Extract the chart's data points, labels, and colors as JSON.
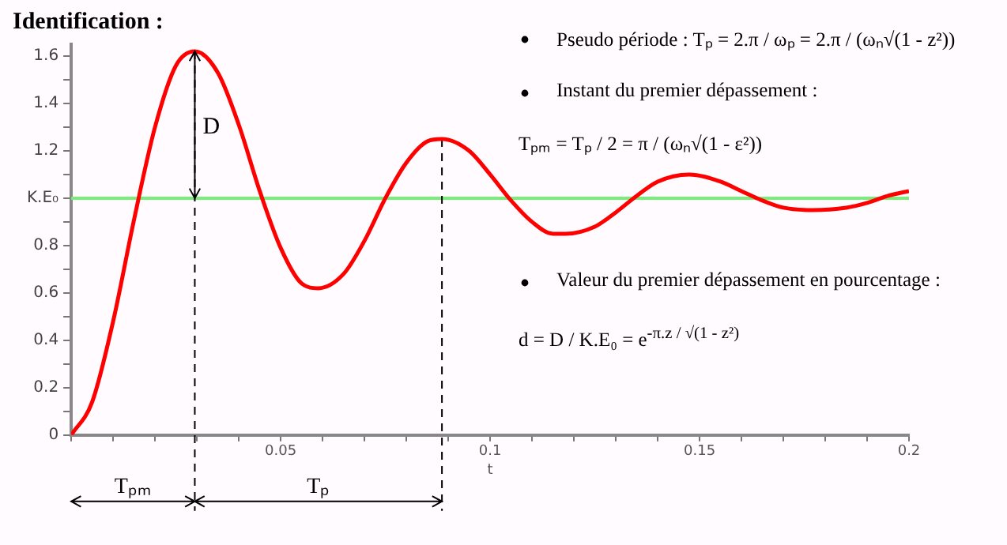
{
  "chart_data": {
    "type": "line",
    "title": "Identification :",
    "xlabel": "t",
    "x": [
      0,
      0.005,
      0.01,
      0.015,
      0.02,
      0.025,
      0.0295,
      0.035,
      0.04,
      0.045,
      0.05,
      0.055,
      0.059,
      0.065,
      0.07,
      0.075,
      0.08,
      0.085,
      0.0885,
      0.095,
      0.1,
      0.105,
      0.11,
      0.115,
      0.118,
      0.125,
      0.13,
      0.135,
      0.14,
      0.1475,
      0.155,
      0.16,
      0.165,
      0.17,
      0.177,
      0.185,
      0.19,
      0.195,
      0.2
    ],
    "series": [
      {
        "color": "#ff0000",
        "values": [
          0,
          0.14,
          0.48,
          0.91,
          1.3,
          1.56,
          1.62,
          1.53,
          1.31,
          1.03,
          0.79,
          0.64,
          0.62,
          0.68,
          0.82,
          1.0,
          1.15,
          1.24,
          1.25,
          1.2,
          1.1,
          0.99,
          0.9,
          0.85,
          0.85,
          0.88,
          0.94,
          1.01,
          1.07,
          1.1,
          1.07,
          1.03,
          0.99,
          0.96,
          0.95,
          0.96,
          0.98,
          1.01,
          1.03
        ]
      }
    ],
    "xlim": [
      0,
      0.2
    ],
    "xticks": [
      {
        "value": 0,
        "label": null
      },
      {
        "value": 0.01,
        "label": null
      },
      {
        "value": 0.02,
        "label": null
      },
      {
        "value": 0.03,
        "label": null
      },
      {
        "value": 0.04,
        "label": null
      },
      0.05,
      {
        "value": 0.06,
        "label": null
      },
      {
        "value": 0.07,
        "label": null
      },
      {
        "value": 0.08,
        "label": null
      },
      {
        "value": 0.09,
        "label": null
      },
      0.1,
      {
        "value": 0.11,
        "label": null
      },
      {
        "value": 0.12,
        "label": null
      },
      {
        "value": 0.13,
        "label": null
      },
      {
        "value": 0.14,
        "label": null
      },
      0.15,
      {
        "value": 0.16,
        "label": null
      },
      {
        "value": 0.17,
        "label": null
      },
      {
        "value": 0.18,
        "label": null
      },
      {
        "value": 0.19,
        "label": null
      },
      0.2
    ],
    "ylim": [
      0,
      1.65
    ],
    "yticks": [
      0,
      {
        "value": 0.1,
        "label": null
      },
      0.2,
      {
        "value": 0.3,
        "label": null
      },
      0.4,
      {
        "value": 0.5,
        "label": null
      },
      0.6,
      {
        "value": 0.7,
        "label": null
      },
      0.8,
      {
        "value": 0.9,
        "label": null
      },
      {
        "value": 1,
        "label": "K.E₀"
      },
      {
        "value": 1.1,
        "label": null
      },
      1.2,
      {
        "value": 1.3,
        "label": null
      },
      1.4,
      {
        "value": 1.5,
        "label": null
      },
      1.6
    ],
    "ref_lines": [
      {
        "axis": "y",
        "value": 1,
        "color": "#77ee77"
      },
      {
        "axis": "x",
        "value": 0.0295,
        "line_style": "dashed",
        "color": "#000000"
      },
      {
        "axis": "x",
        "value": 0.0885,
        "line_style": "dashed",
        "color": "#000000"
      }
    ],
    "annotations": [
      "Pseudo période : Tₚ = 2.π / ωₚ = 2.π / (ωₙ√(1 - z²))",
      "Instant du premier dépassement :",
      "Tₚₘ = Tₚ / 2 = π / (ωₙ√(1 - ε²))",
      "Valeur du premier dépassement en pourcentage :",
      "d = D / K.E₀ = e$^{-π.z / √(1 - z²)}$",
      {
        "text": "D",
        "x": 0.0295,
        "y": 1.3
      },
      "Tₚₘ",
      "Tₚ"
    ],
    "grid": false,
    "legend": false,
    "marker": "none",
    "line_style": "solid"
  }
}
